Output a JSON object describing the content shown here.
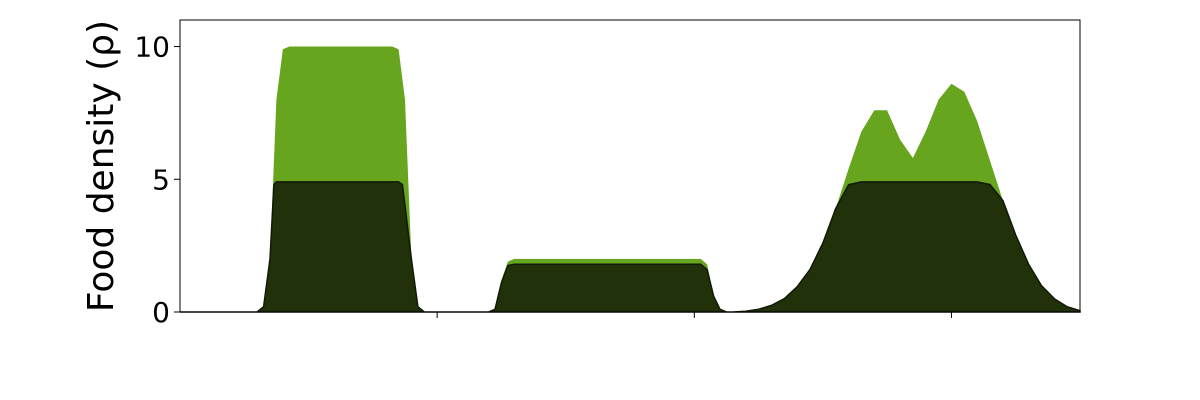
{
  "chart_data": {
    "type": "area",
    "title": "",
    "xlabel": "",
    "ylabel": "Food density (ρ)",
    "ylim": [
      0,
      11
    ],
    "xlim": [
      0,
      700
    ],
    "yticks": [
      {
        "value": 0,
        "label": "0"
      },
      {
        "value": 5,
        "label": "5"
      },
      {
        "value": 10,
        "label": "10"
      }
    ],
    "xticks": [
      {
        "value": 200,
        "label": ""
      },
      {
        "value": 400,
        "label": ""
      },
      {
        "value": 600,
        "label": ""
      }
    ],
    "grid": false,
    "series": [
      {
        "color": "#67a51f",
        "x": [
          0,
          60,
          65,
          70,
          75,
          80,
          85,
          90,
          160,
          165,
          170,
          175,
          180,
          185,
          190,
          240,
          245,
          250,
          255,
          260,
          265,
          400,
          405,
          410,
          415,
          420,
          425,
          430,
          440,
          450,
          460,
          470,
          480,
          490,
          500,
          510,
          520,
          530,
          540,
          550,
          560,
          570,
          580,
          590,
          600,
          610,
          620,
          630,
          640,
          650,
          660,
          670,
          680,
          690,
          700
        ],
        "y": [
          0,
          0,
          0.2,
          2.0,
          8.0,
          9.9,
          10.0,
          10.0,
          10.0,
          10.0,
          9.9,
          8.0,
          2.0,
          0.2,
          0,
          0,
          0.1,
          1.2,
          1.9,
          2.0,
          2.0,
          2.0,
          2.0,
          1.8,
          0.6,
          0.1,
          0,
          0,
          0.03,
          0.1,
          0.25,
          0.5,
          0.95,
          1.6,
          2.6,
          3.9,
          5.4,
          6.8,
          7.6,
          7.6,
          6.5,
          5.8,
          6.8,
          8.0,
          8.6,
          8.3,
          7.2,
          5.7,
          4.2,
          2.9,
          1.8,
          1.0,
          0.5,
          0.2,
          0.05
        ]
      },
      {
        "color": "#213109",
        "x": [
          0,
          60,
          65,
          70,
          73,
          75,
          80,
          85,
          90,
          160,
          165,
          170,
          173,
          175,
          180,
          185,
          190,
          240,
          245,
          250,
          255,
          260,
          265,
          400,
          405,
          410,
          415,
          420,
          425,
          430,
          440,
          450,
          460,
          470,
          480,
          490,
          500,
          510,
          520,
          530,
          540,
          550,
          560,
          570,
          580,
          590,
          600,
          610,
          620,
          630,
          640,
          650,
          660,
          670,
          680,
          690,
          700
        ],
        "y": [
          0,
          0,
          0.2,
          2.0,
          4.8,
          4.9,
          4.9,
          4.9,
          4.9,
          4.9,
          4.9,
          4.9,
          4.8,
          4.0,
          2.0,
          0.2,
          0,
          0,
          0.1,
          1.1,
          1.75,
          1.8,
          1.8,
          1.8,
          1.8,
          1.6,
          0.6,
          0.1,
          0,
          0,
          0.03,
          0.1,
          0.25,
          0.5,
          0.95,
          1.6,
          2.6,
          3.9,
          4.8,
          4.9,
          4.9,
          4.9,
          4.9,
          4.9,
          4.9,
          4.9,
          4.9,
          4.9,
          4.9,
          4.8,
          4.2,
          2.9,
          1.8,
          1.0,
          0.5,
          0.2,
          0.05
        ]
      }
    ]
  }
}
